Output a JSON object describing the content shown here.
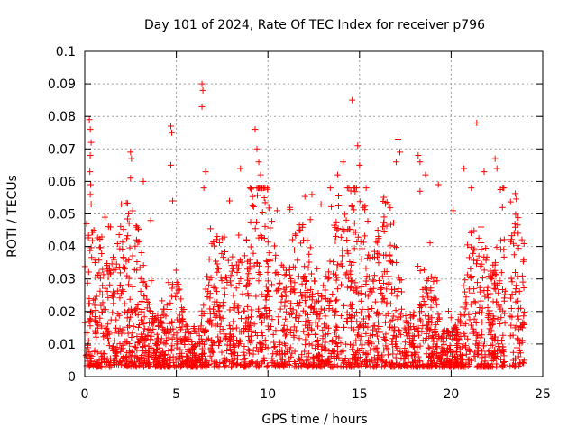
{
  "chart_data": {
    "type": "scatter",
    "title": "Day 101 of 2024, Rate Of TEC Index for receiver p796",
    "xlabel": "GPS time / hours",
    "ylabel": "ROTI / TECUs",
    "xlim": [
      0,
      25
    ],
    "ylim": [
      0,
      0.1
    ],
    "x_ticks": [
      0,
      5,
      10,
      15,
      20,
      25
    ],
    "x_tick_labels": [
      "0",
      "5",
      "10",
      "15",
      "20",
      "25"
    ],
    "y_ticks": [
      0,
      0.01,
      0.02,
      0.03,
      0.04,
      0.05,
      0.06,
      0.07,
      0.08,
      0.09,
      0.1
    ],
    "y_tick_labels": [
      "0",
      "0.01",
      "0.02",
      "0.03",
      "0.04",
      "0.05",
      "0.06",
      "0.07",
      "0.08",
      "0.09",
      "0.1"
    ],
    "grid": true,
    "marker": "+",
    "color": "#ff0000",
    "data_range_x": [
      0,
      24
    ],
    "points": [
      [
        0.25,
        0.079
      ],
      [
        0.3,
        0.076
      ],
      [
        0.35,
        0.072
      ],
      [
        0.3,
        0.068
      ],
      [
        0.28,
        0.063
      ],
      [
        0.32,
        0.059
      ],
      [
        0.3,
        0.056
      ],
      [
        0.35,
        0.053
      ],
      [
        0.1,
        0.047
      ],
      [
        0.5,
        0.045
      ],
      [
        1.1,
        0.049
      ],
      [
        1.4,
        0.046
      ],
      [
        2.0,
        0.053
      ],
      [
        2.5,
        0.069
      ],
      [
        2.55,
        0.067
      ],
      [
        2.5,
        0.061
      ],
      [
        3.2,
        0.06
      ],
      [
        3.6,
        0.048
      ],
      [
        4.7,
        0.077
      ],
      [
        4.75,
        0.075
      ],
      [
        4.7,
        0.065
      ],
      [
        4.8,
        0.054
      ],
      [
        6.4,
        0.09
      ],
      [
        6.45,
        0.088
      ],
      [
        6.4,
        0.083
      ],
      [
        6.6,
        0.063
      ],
      [
        6.5,
        0.058
      ],
      [
        7.9,
        0.054
      ],
      [
        8.5,
        0.064
      ],
      [
        9.3,
        0.076
      ],
      [
        9.4,
        0.07
      ],
      [
        9.5,
        0.066
      ],
      [
        9.6,
        0.062
      ],
      [
        9.4,
        0.058
      ],
      [
        9.8,
        0.055
      ],
      [
        10.5,
        0.051
      ],
      [
        11.2,
        0.052
      ],
      [
        12.4,
        0.056
      ],
      [
        12.9,
        0.053
      ],
      [
        13.4,
        0.058
      ],
      [
        13.8,
        0.062
      ],
      [
        14.1,
        0.066
      ],
      [
        14.6,
        0.085
      ],
      [
        14.9,
        0.071
      ],
      [
        15.0,
        0.065
      ],
      [
        15.2,
        0.052
      ],
      [
        16.0,
        0.045
      ],
      [
        17.1,
        0.073
      ],
      [
        17.2,
        0.069
      ],
      [
        17.0,
        0.066
      ],
      [
        18.2,
        0.068
      ],
      [
        18.3,
        0.066
      ],
      [
        18.6,
        0.062
      ],
      [
        18.3,
        0.057
      ],
      [
        19.3,
        0.059
      ],
      [
        20.1,
        0.051
      ],
      [
        20.7,
        0.064
      ],
      [
        21.4,
        0.078
      ],
      [
        21.8,
        0.063
      ],
      [
        22.4,
        0.067
      ],
      [
        22.5,
        0.064
      ],
      [
        22.8,
        0.052
      ],
      [
        23.5,
        0.032
      ],
      [
        23.8,
        0.021
      ]
    ]
  }
}
